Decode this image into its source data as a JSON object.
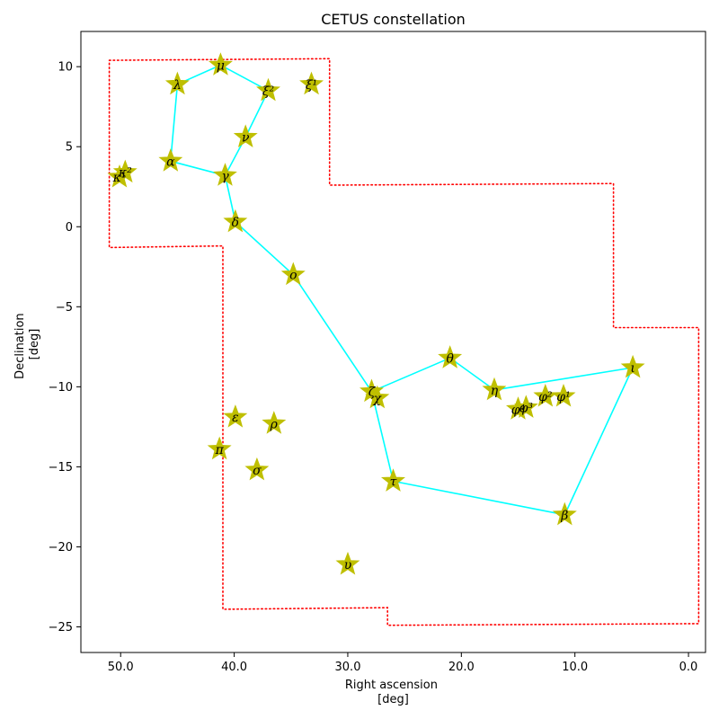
{
  "chart_data": {
    "type": "scatter",
    "title": "CETUS constellation",
    "xlabel": [
      "Right ascension",
      "[deg]"
    ],
    "ylabel": [
      "Declination",
      "[deg]"
    ],
    "xlim": [
      53.5,
      -1.5
    ],
    "ylim": [
      -26.6,
      12.2
    ],
    "x_ticks": [
      50,
      40,
      30,
      20,
      10,
      0
    ],
    "x_tick_labels": [
      "50.0",
      "40.0",
      "30.0",
      "20.0",
      "10.0",
      "0.0"
    ],
    "y_ticks": [
      -25,
      -20,
      -15,
      -10,
      -5,
      0,
      5,
      10
    ],
    "y_tick_labels": [
      "−25",
      "−20",
      "−15",
      "−10",
      "−5",
      "0",
      "5",
      "10"
    ],
    "marker_color": "#bfbf00",
    "line_color": "#00ffff",
    "boundary_color": "#ff0000",
    "stars": [
      {
        "label": "μ",
        "ra": 41.2,
        "dec": 10.1
      },
      {
        "label": "λ",
        "ra": 45.0,
        "dec": 8.9
      },
      {
        "label": "ξ²",
        "ra": 37.0,
        "dec": 8.5
      },
      {
        "label": "ξ¹",
        "ra": 33.2,
        "dec": 8.9
      },
      {
        "label": "ν",
        "ra": 39.0,
        "dec": 5.6
      },
      {
        "label": "α",
        "ra": 45.6,
        "dec": 4.1
      },
      {
        "label": "γ",
        "ra": 40.8,
        "dec": 3.2
      },
      {
        "label": "κ¹",
        "ra": 50.1,
        "dec": 3.1
      },
      {
        "label": "κ²",
        "ra": 49.6,
        "dec": 3.4
      },
      {
        "label": "δ",
        "ra": 39.9,
        "dec": 0.3
      },
      {
        "label": "ο",
        "ra": 34.8,
        "dec": -3.0
      },
      {
        "label": "θ",
        "ra": 21.0,
        "dec": -8.2
      },
      {
        "label": "η",
        "ra": 17.1,
        "dec": -10.2
      },
      {
        "label": "ι",
        "ra": 4.9,
        "dec": -8.8
      },
      {
        "label": "ζ",
        "ra": 27.9,
        "dec": -10.3
      },
      {
        "label": "χ",
        "ra": 27.4,
        "dec": -10.7
      },
      {
        "label": "φ⁴",
        "ra": 15.0,
        "dec": -11.4
      },
      {
        "label": "φ³",
        "ra": 14.3,
        "dec": -11.3
      },
      {
        "label": "φ²",
        "ra": 12.6,
        "dec": -10.6
      },
      {
        "label": "φ¹",
        "ra": 11.0,
        "dec": -10.6
      },
      {
        "label": "ε",
        "ra": 39.9,
        "dec": -11.9
      },
      {
        "label": "ρ",
        "ra": 36.5,
        "dec": -12.3
      },
      {
        "label": "π",
        "ra": 41.3,
        "dec": -13.9
      },
      {
        "label": "σ",
        "ra": 38.0,
        "dec": -15.2
      },
      {
        "label": "τ",
        "ra": 26.0,
        "dec": -15.9
      },
      {
        "label": "β",
        "ra": 10.9,
        "dec": -18.0
      },
      {
        "label": "υ",
        "ra": 30.0,
        "dec": -21.1
      }
    ],
    "lines": [
      [
        [
          45.6,
          4.1
        ],
        [
          45.0,
          8.9
        ],
        [
          41.2,
          10.1
        ],
        [
          37.0,
          8.5
        ],
        [
          39.0,
          5.6
        ],
        [
          40.8,
          3.2
        ],
        [
          45.6,
          4.1
        ]
      ],
      [
        [
          40.8,
          3.2
        ],
        [
          39.9,
          0.3
        ],
        [
          34.8,
          -3.0
        ],
        [
          27.9,
          -10.3
        ],
        [
          21.0,
          -8.2
        ],
        [
          17.1,
          -10.2
        ],
        [
          4.9,
          -8.8
        ],
        [
          10.9,
          -18.0
        ],
        [
          26.0,
          -15.9
        ],
        [
          27.9,
          -10.3
        ]
      ]
    ],
    "boundary": [
      [
        51.0,
        10.4
      ],
      [
        31.6,
        10.5
      ],
      [
        31.6,
        2.6
      ],
      [
        6.6,
        2.7
      ],
      [
        6.6,
        -6.3
      ],
      [
        -0.9,
        -6.3
      ],
      [
        -0.9,
        -24.8
      ],
      [
        26.5,
        -24.9
      ],
      [
        26.5,
        -23.8
      ],
      [
        41.0,
        -23.9
      ],
      [
        41.0,
        -1.2
      ],
      [
        51.0,
        -1.3
      ],
      [
        51.0,
        10.4
      ]
    ],
    "grid": false,
    "legend": "none"
  }
}
